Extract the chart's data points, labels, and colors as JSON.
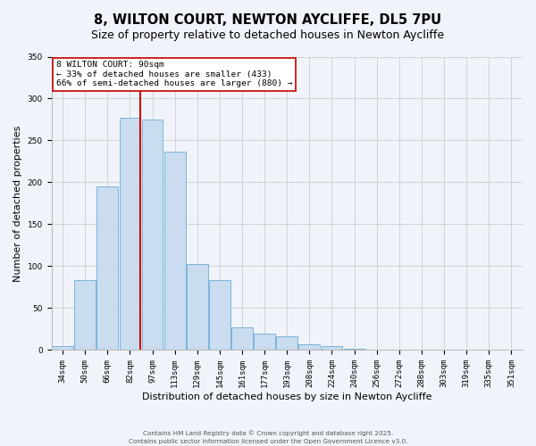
{
  "title": "8, WILTON COURT, NEWTON AYCLIFFE, DL5 7PU",
  "subtitle": "Size of property relative to detached houses in Newton Aycliffe",
  "xlabel": "Distribution of detached houses by size in Newton Aycliffe",
  "ylabel": "Number of detached properties",
  "bar_labels": [
    "34sqm",
    "50sqm",
    "66sqm",
    "82sqm",
    "97sqm",
    "113sqm",
    "129sqm",
    "145sqm",
    "161sqm",
    "177sqm",
    "193sqm",
    "208sqm",
    "224sqm",
    "240sqm",
    "256sqm",
    "272sqm",
    "288sqm",
    "303sqm",
    "319sqm",
    "335sqm",
    "351sqm"
  ],
  "bar_values": [
    5,
    83,
    195,
    277,
    275,
    237,
    103,
    83,
    27,
    20,
    16,
    7,
    5,
    2,
    0,
    0,
    0,
    1,
    0,
    1,
    0
  ],
  "bar_color": "#c9dcf0",
  "bar_edge_color": "#7ab4d8",
  "vline_color": "#cc0000",
  "vline_pos": 3.47,
  "annotation_title": "8 WILTON COURT: 90sqm",
  "annotation_line1": "← 33% of detached houses are smaller (433)",
  "annotation_line2": "66% of semi-detached houses are larger (880) →",
  "annotation_box_color": "#ffffff",
  "annotation_box_edge": "#cc0000",
  "ylim": [
    0,
    350
  ],
  "yticks": [
    0,
    50,
    100,
    150,
    200,
    250,
    300,
    350
  ],
  "footnote1": "Contains HM Land Registry data © Crown copyright and database right 2025.",
  "footnote2": "Contains public sector information licensed under the Open Government Licence v3.0.",
  "background_color": "#f0f4fa",
  "title_fontsize": 10.5,
  "subtitle_fontsize": 9,
  "tick_fontsize": 6.5,
  "axis_label_fontsize": 8,
  "annotation_fontsize": 6.8,
  "footnote_fontsize": 5.2
}
